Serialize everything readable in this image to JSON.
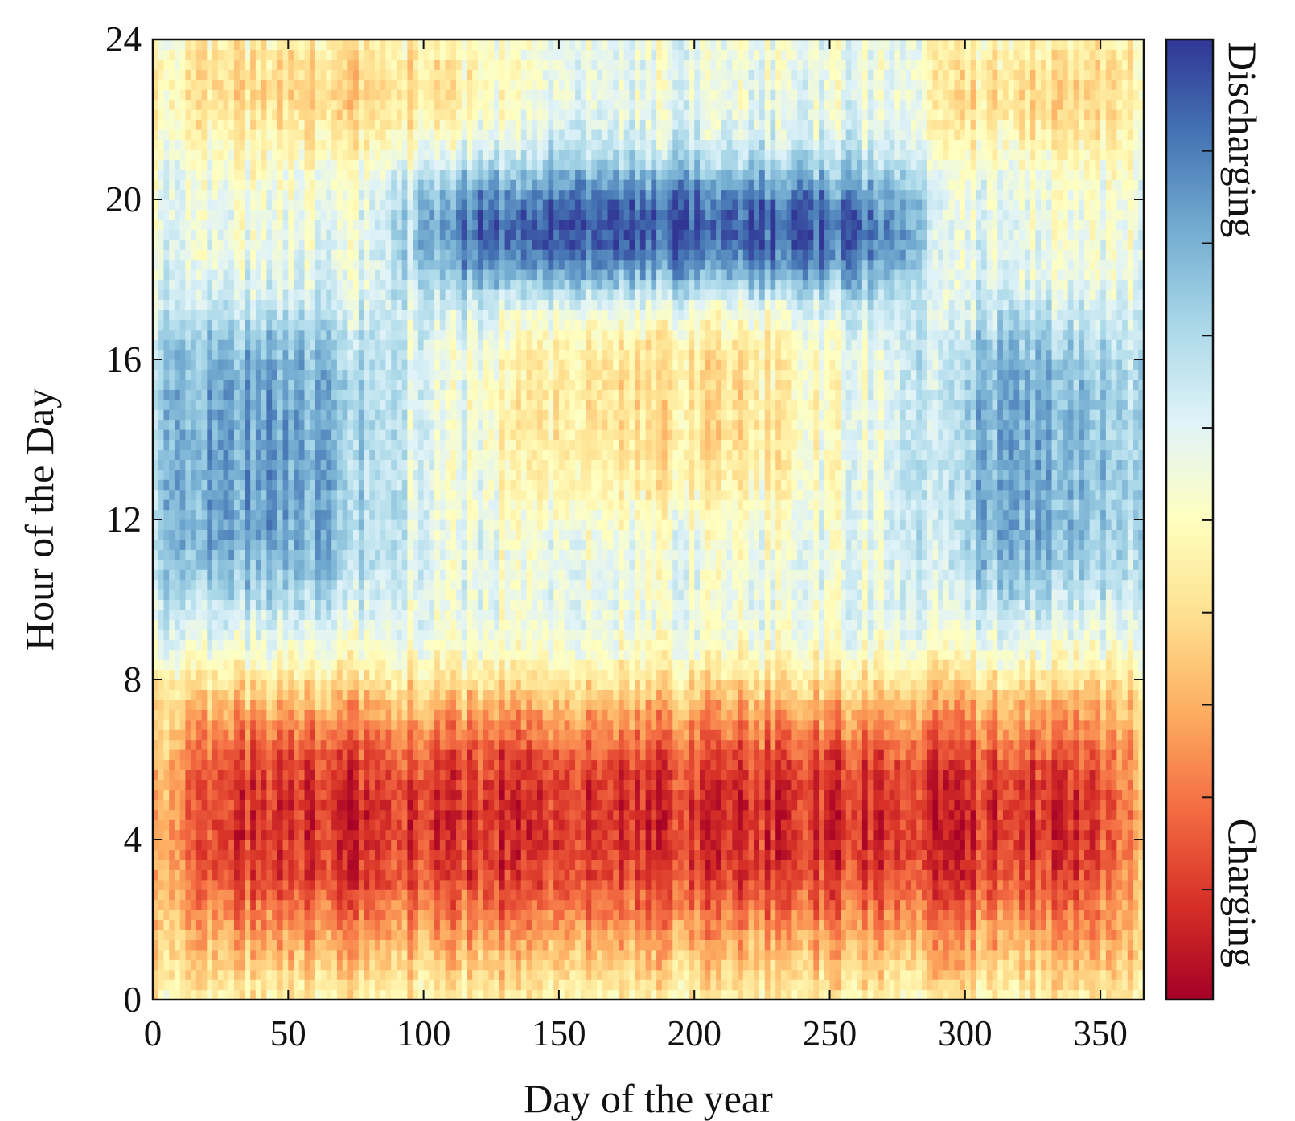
{
  "chart_data": {
    "type": "heatmap",
    "xlabel": "Day of the year",
    "ylabel": "Hour of the Day",
    "xlim": [
      0,
      366
    ],
    "ylim": [
      0,
      24
    ],
    "x_ticks": [
      0,
      50,
      100,
      150,
      200,
      250,
      300,
      350
    ],
    "y_ticks": [
      0,
      4,
      8,
      12,
      16,
      20,
      24
    ],
    "colormap": [
      "#a50026",
      "#d73027",
      "#f46d43",
      "#fdae61",
      "#fee090",
      "#ffffbf",
      "#e0f3f8",
      "#abd9e9",
      "#74add1",
      "#4575b4",
      "#313695"
    ],
    "value_range": [
      -1,
      1
    ],
    "colorbar": {
      "high_label": "Discharging",
      "low_label": "Charging"
    },
    "grid": false,
    "bands": [
      {
        "description": "night charging",
        "day_range": [
          0,
          366
        ],
        "hour_range": [
          2,
          7
        ],
        "value": -0.9
      },
      {
        "description": "evening discharging",
        "day_range": [
          100,
          280
        ],
        "hour_range": [
          18,
          20.5
        ],
        "value": 0.9
      },
      {
        "description": "midday discharging (winter)",
        "day_range": [
          0,
          80
        ],
        "hour_range": [
          10,
          17
        ],
        "value": 0.5
      },
      {
        "description": "midday discharging (late year)",
        "day_range": [
          290,
          366
        ],
        "hour_range": [
          10,
          17
        ],
        "value": 0.45
      },
      {
        "description": "summer afternoon charging",
        "day_range": [
          130,
          240
        ],
        "hour_range": [
          12.5,
          17.5
        ],
        "value": -0.3
      },
      {
        "description": "late-night charging (winter)",
        "day_range": [
          0,
          120
        ],
        "hour_range": [
          21.5,
          24
        ],
        "value": -0.4
      },
      {
        "description": "late-night charging (late year)",
        "day_range": [
          290,
          366
        ],
        "hour_range": [
          21.5,
          24
        ],
        "value": -0.4
      }
    ]
  }
}
